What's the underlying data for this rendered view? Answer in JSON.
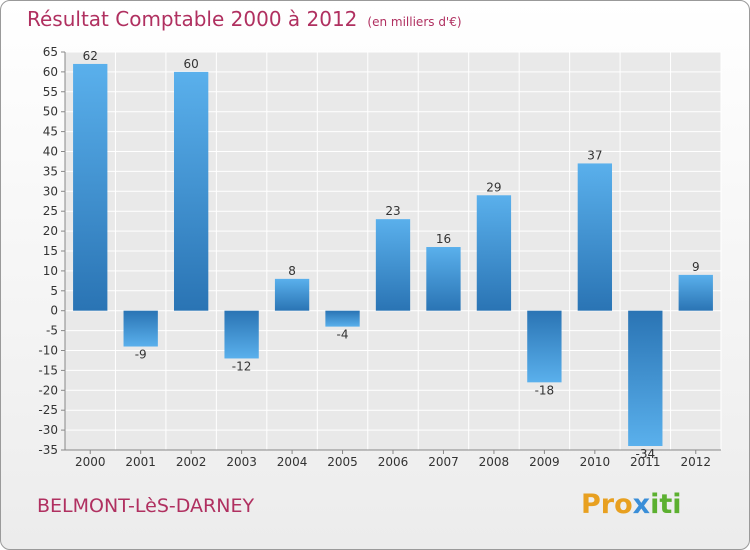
{
  "header": {
    "title": "Résultat Comptable 2000 à 2012",
    "subtitle": "(en milliers d'€)"
  },
  "footer": {
    "place": "BELMONT-LèS-DARNEY",
    "brand_parts": [
      "Pro",
      "x",
      "iti"
    ]
  },
  "colors": {
    "title": "#b03060",
    "bar_light": "#5ab0ec",
    "bar_dark": "#2a74b4",
    "grid": "#ffffff"
  },
  "chart_data": {
    "type": "bar",
    "title": "Résultat Comptable 2000 à 2012",
    "subtitle": "(en milliers d'€)",
    "xlabel": "",
    "ylabel": "",
    "categories": [
      "2000",
      "2001",
      "2002",
      "2003",
      "2004",
      "2005",
      "2006",
      "2007",
      "2008",
      "2009",
      "2010",
      "2011",
      "2012"
    ],
    "values": [
      62,
      -9,
      60,
      -12,
      8,
      -4,
      23,
      16,
      29,
      -18,
      37,
      -34,
      9
    ],
    "ylim": [
      -35,
      65
    ],
    "yticks": [
      65,
      60,
      55,
      50,
      45,
      40,
      35,
      30,
      25,
      20,
      15,
      10,
      5,
      0,
      -5,
      -10,
      -15,
      -20,
      -25,
      -30,
      -35
    ],
    "grid": true
  }
}
